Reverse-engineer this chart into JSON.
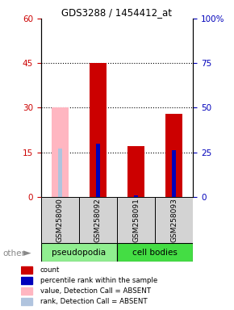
{
  "title": "GDS3288 / 1454412_at",
  "samples": [
    "GSM258090",
    "GSM258092",
    "GSM258091",
    "GSM258093"
  ],
  "count_values": [
    null,
    45,
    17,
    28
  ],
  "count_absent": [
    30,
    null,
    null,
    null
  ],
  "rank_values": [
    null,
    30,
    1,
    26
  ],
  "rank_absent": [
    27,
    null,
    null,
    null
  ],
  "ylim_left": [
    0,
    60
  ],
  "ylim_right": [
    0,
    100
  ],
  "yticks_left": [
    0,
    15,
    30,
    45,
    60
  ],
  "yticks_right": [
    0,
    25,
    50,
    75,
    100
  ],
  "count_color": "#CC0000",
  "rank_color": "#0000BB",
  "count_absent_color": "#FFB6C1",
  "rank_absent_color": "#B0C4DE",
  "left_tick_color": "#CC0000",
  "right_tick_color": "#0000BB",
  "legend_labels": [
    "count",
    "percentile rank within the sample",
    "value, Detection Call = ABSENT",
    "rank, Detection Call = ABSENT"
  ],
  "legend_colors": [
    "#CC0000",
    "#0000BB",
    "#FFB6C1",
    "#B0C4DE"
  ],
  "pseudo_color": "#90EE90",
  "cb_color": "#44DD44",
  "sample_bg": "#D3D3D3"
}
